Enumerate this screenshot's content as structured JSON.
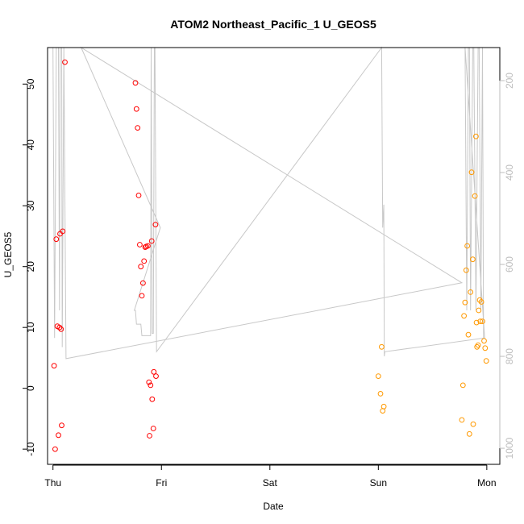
{
  "chart_data": {
    "type": "scatter",
    "title": "ATOM2 Northeast_Pacific_1 U_GEOS5",
    "xlabel": "Date",
    "ylabel": "U_GEOS5",
    "x_unit": "days",
    "xlim": [
      -0.05,
      4.12
    ],
    "ylim": [
      -12.5,
      56
    ],
    "y_ticks": [
      -10,
      0,
      10,
      20,
      30,
      40,
      50
    ],
    "x_ticks": [
      {
        "value": 0,
        "label": "Thu"
      },
      {
        "value": 1,
        "label": "Fri"
      },
      {
        "value": 2,
        "label": "Sat"
      },
      {
        "value": 3,
        "label": "Sun"
      },
      {
        "value": 4,
        "label": "Mon"
      }
    ],
    "right_axis": {
      "reversed": true,
      "lim": [
        128,
        1035
      ],
      "ticks": [
        200,
        400,
        600,
        800,
        1000
      ],
      "color": "#bdbdbd"
    },
    "grid": false,
    "legend": "none",
    "series": [
      {
        "color": "#ff0000",
        "marker": "open-circle",
        "points": [
          [
            0.01,
            3.7
          ],
          [
            0.02,
            -10.0
          ],
          [
            0.03,
            24.5
          ],
          [
            0.04,
            10.2
          ],
          [
            0.05,
            -7.7
          ],
          [
            0.06,
            10.0
          ],
          [
            0.065,
            25.4
          ],
          [
            0.075,
            9.7
          ],
          [
            0.08,
            -6.1
          ],
          [
            0.09,
            25.8
          ],
          [
            0.11,
            53.6
          ],
          [
            0.76,
            50.2
          ],
          [
            0.77,
            45.9
          ],
          [
            0.78,
            42.8
          ],
          [
            0.79,
            31.7
          ],
          [
            0.8,
            23.6
          ],
          [
            0.81,
            20.0
          ],
          [
            0.82,
            15.2
          ],
          [
            0.83,
            17.3
          ],
          [
            0.84,
            20.9
          ],
          [
            0.85,
            23.2
          ],
          [
            0.86,
            23.3
          ],
          [
            0.875,
            23.4
          ],
          [
            0.885,
            1.0
          ],
          [
            0.89,
            -7.8
          ],
          [
            0.9,
            0.5
          ],
          [
            0.91,
            24.2
          ],
          [
            0.915,
            -1.8
          ],
          [
            0.925,
            -6.6
          ],
          [
            0.93,
            2.7
          ],
          [
            0.945,
            26.9
          ],
          [
            0.95,
            2.0
          ]
        ]
      },
      {
        "color": "#ff9900",
        "marker": "open-circle",
        "points": [
          [
            3.0,
            2.0
          ],
          [
            3.02,
            -0.9
          ],
          [
            3.03,
            6.8
          ],
          [
            3.04,
            -3.7
          ],
          [
            3.05,
            -3.0
          ],
          [
            3.77,
            -5.2
          ],
          [
            3.78,
            0.5
          ],
          [
            3.79,
            11.9
          ],
          [
            3.8,
            14.1
          ],
          [
            3.81,
            19.4
          ],
          [
            3.82,
            23.4
          ],
          [
            3.83,
            8.8
          ],
          [
            3.84,
            -7.5
          ],
          [
            3.85,
            15.8
          ],
          [
            3.86,
            35.5
          ],
          [
            3.87,
            21.2
          ],
          [
            3.875,
            -5.9
          ],
          [
            3.89,
            31.6
          ],
          [
            3.9,
            41.4
          ],
          [
            3.905,
            10.8
          ],
          [
            3.91,
            6.8
          ],
          [
            3.92,
            7.1
          ],
          [
            3.925,
            12.8
          ],
          [
            3.935,
            14.5
          ],
          [
            3.94,
            11.0
          ],
          [
            3.95,
            14.2
          ],
          [
            3.96,
            11.0
          ],
          [
            3.975,
            7.8
          ],
          [
            3.985,
            6.6
          ],
          [
            3.995,
            4.5
          ]
        ]
      },
      {
        "color": "#c8c8c8",
        "type": "line",
        "axis": "right",
        "points": [
          [
            0.0,
            128
          ],
          [
            0.015,
            760
          ],
          [
            0.03,
            128
          ],
          [
            0.05,
            128
          ],
          [
            0.06,
            700
          ],
          [
            0.065,
            128
          ],
          [
            0.08,
            128
          ],
          [
            0.085,
            780
          ],
          [
            0.1,
            128
          ],
          [
            0.12,
            805
          ],
          [
            3.77,
            640
          ],
          [
            0.26,
            128
          ],
          [
            0.99,
            520
          ],
          [
            0.75,
            700
          ],
          [
            0.76,
            700
          ],
          [
            0.77,
            730
          ],
          [
            0.78,
            730
          ],
          [
            0.79,
            730
          ],
          [
            0.8,
            730
          ],
          [
            0.81,
            730
          ],
          [
            0.82,
            755
          ],
          [
            0.83,
            755
          ],
          [
            0.84,
            755
          ],
          [
            0.85,
            755
          ],
          [
            0.86,
            755
          ],
          [
            0.87,
            755
          ],
          [
            0.88,
            755
          ],
          [
            0.89,
            755
          ],
          [
            0.9,
            755
          ],
          [
            0.905,
            128
          ],
          [
            0.915,
            750
          ],
          [
            0.925,
            750
          ],
          [
            0.935,
            128
          ],
          [
            0.94,
            128
          ],
          [
            0.955,
            790
          ],
          [
            3.03,
            128
          ],
          [
            3.04,
            520
          ],
          [
            3.05,
            470
          ],
          [
            3.055,
            800
          ],
          [
            3.06,
            790
          ],
          [
            3.98,
            760
          ],
          [
            3.8,
            128
          ],
          [
            3.815,
            700
          ],
          [
            3.83,
            128
          ],
          [
            3.84,
            128
          ],
          [
            3.85,
            700
          ],
          [
            3.87,
            128
          ],
          [
            3.88,
            128
          ],
          [
            3.9,
            700
          ],
          [
            3.92,
            128
          ],
          [
            3.93,
            128
          ],
          [
            3.945,
            700
          ],
          [
            3.96,
            128
          ],
          [
            3.97,
            760
          ]
        ]
      }
    ]
  }
}
